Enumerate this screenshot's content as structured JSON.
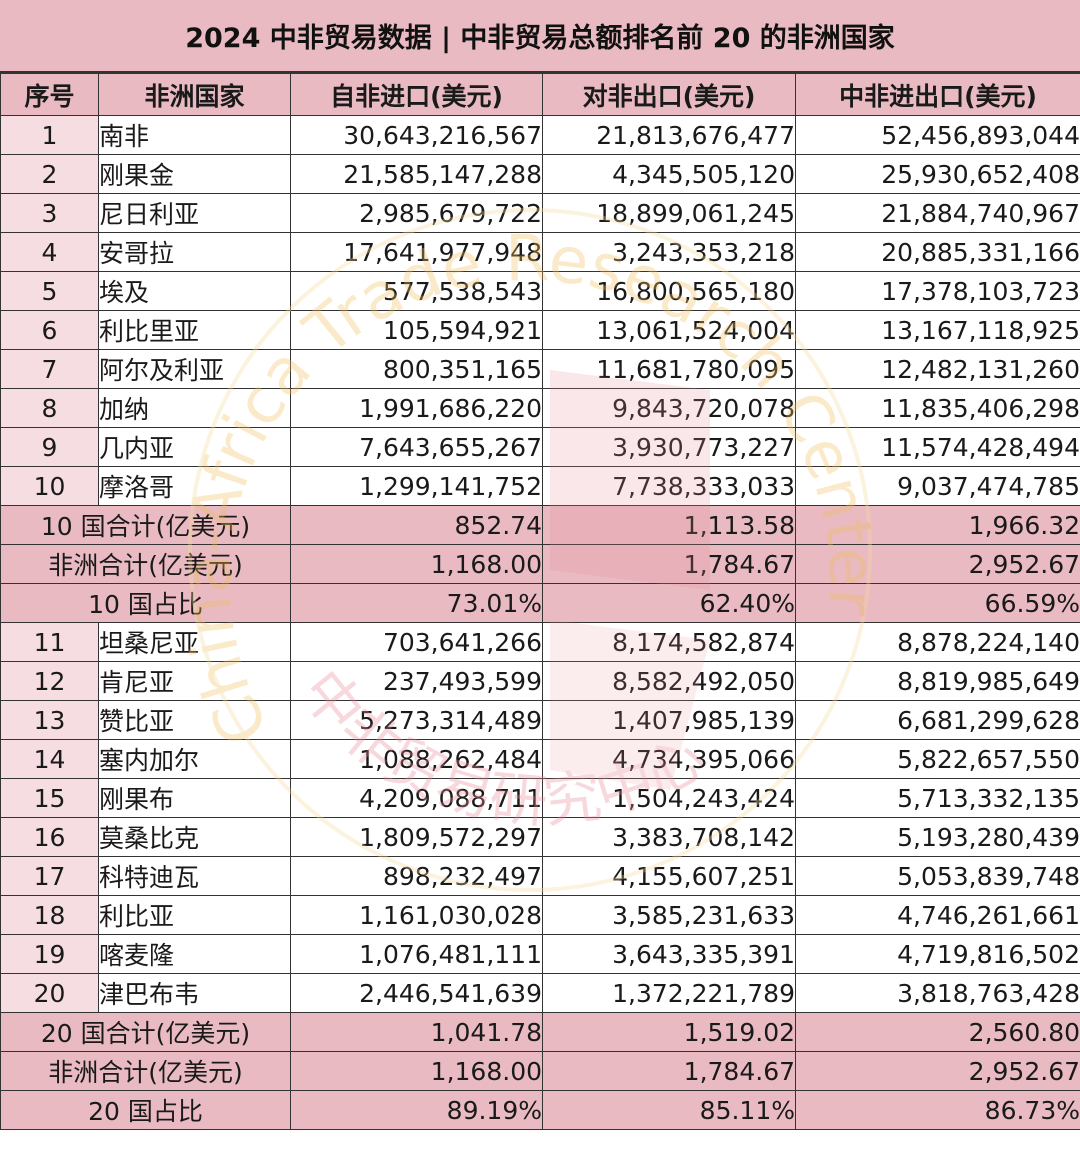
{
  "title": "2024 中非贸易数据 | 中非贸易总额排名前 20 的非洲国家",
  "headers": [
    "序号",
    "非洲国家",
    "自非进口(美元)",
    "对非出口(美元)",
    "中非进出口(美元)"
  ],
  "group1": {
    "rows": [
      {
        "rank": "1",
        "country": "南非",
        "imports": "30,643,216,567",
        "exports": "21,813,676,477",
        "total": "52,456,893,044"
      },
      {
        "rank": "2",
        "country": "刚果金",
        "imports": "21,585,147,288",
        "exports": "4,345,505,120",
        "total": "25,930,652,408"
      },
      {
        "rank": "3",
        "country": "尼日利亚",
        "imports": "2,985,679,722",
        "exports": "18,899,061,245",
        "total": "21,884,740,967"
      },
      {
        "rank": "4",
        "country": "安哥拉",
        "imports": "17,641,977,948",
        "exports": "3,243,353,218",
        "total": "20,885,331,166"
      },
      {
        "rank": "5",
        "country": "埃及",
        "imports": "577,538,543",
        "exports": "16,800,565,180",
        "total": "17,378,103,723"
      },
      {
        "rank": "6",
        "country": "利比里亚",
        "imports": "105,594,921",
        "exports": "13,061,524,004",
        "total": "13,167,118,925"
      },
      {
        "rank": "7",
        "country": "阿尔及利亚",
        "imports": "800,351,165",
        "exports": "11,681,780,095",
        "total": "12,482,131,260"
      },
      {
        "rank": "8",
        "country": "加纳",
        "imports": "1,991,686,220",
        "exports": "9,843,720,078",
        "total": "11,835,406,298"
      },
      {
        "rank": "9",
        "country": "几内亚",
        "imports": "7,643,655,267",
        "exports": "3,930,773,227",
        "total": "11,574,428,494"
      },
      {
        "rank": "10",
        "country": "摩洛哥",
        "imports": "1,299,141,752",
        "exports": "7,738,333,033",
        "total": "9,037,474,785"
      }
    ],
    "summary": [
      {
        "label": "10 国合计(亿美元)",
        "imports": "852.74",
        "exports": "1,113.58",
        "total": "1,966.32"
      },
      {
        "label": "非洲合计(亿美元)",
        "imports": "1,168.00",
        "exports": "1,784.67",
        "total": "2,952.67"
      },
      {
        "label": "10 国占比",
        "imports": "73.01%",
        "exports": "62.40%",
        "total": "66.59%"
      }
    ]
  },
  "group2": {
    "rows": [
      {
        "rank": "11",
        "country": "坦桑尼亚",
        "imports": "703,641,266",
        "exports": "8,174,582,874",
        "total": "8,878,224,140"
      },
      {
        "rank": "12",
        "country": "肯尼亚",
        "imports": "237,493,599",
        "exports": "8,582,492,050",
        "total": "8,819,985,649"
      },
      {
        "rank": "13",
        "country": "赞比亚",
        "imports": "5,273,314,489",
        "exports": "1,407,985,139",
        "total": "6,681,299,628"
      },
      {
        "rank": "14",
        "country": "塞内加尔",
        "imports": "1,088,262,484",
        "exports": "4,734,395,066",
        "total": "5,822,657,550"
      },
      {
        "rank": "15",
        "country": "刚果布",
        "imports": "4,209,088,711",
        "exports": "1,504,243,424",
        "total": "5,713,332,135"
      },
      {
        "rank": "16",
        "country": "莫桑比克",
        "imports": "1,809,572,297",
        "exports": "3,383,708,142",
        "total": "5,193,280,439"
      },
      {
        "rank": "17",
        "country": "科特迪瓦",
        "imports": "898,232,497",
        "exports": "4,155,607,251",
        "total": "5,053,839,748"
      },
      {
        "rank": "18",
        "country": "利比亚",
        "imports": "1,161,030,028",
        "exports": "3,585,231,633",
        "total": "4,746,261,661"
      },
      {
        "rank": "19",
        "country": "喀麦隆",
        "imports": "1,076,481,111",
        "exports": "3,643,335,391",
        "total": "4,719,816,502"
      },
      {
        "rank": "20",
        "country": "津巴布韦",
        "imports": "2,446,541,639",
        "exports": "1,372,221,789",
        "total": "3,818,763,428"
      }
    ],
    "summary": [
      {
        "label": "20 国合计(亿美元)",
        "imports": "1,041.78",
        "exports": "1,519.02",
        "total": "2,560.80"
      },
      {
        "label": "非洲合计(亿美元)",
        "imports": "1,168.00",
        "exports": "1,784.67",
        "total": "2,952.67"
      },
      {
        "label": "20 国占比",
        "imports": "89.19%",
        "exports": "85.11%",
        "total": "86.73%"
      }
    ]
  },
  "watermark": {
    "text_en": "China-Africa Trade Research Center",
    "text_cn": "中非贸易研究中心"
  },
  "colors": {
    "header_bg": "#e9bac1",
    "rank_bg": "#f6dde1",
    "border": "#333333"
  }
}
